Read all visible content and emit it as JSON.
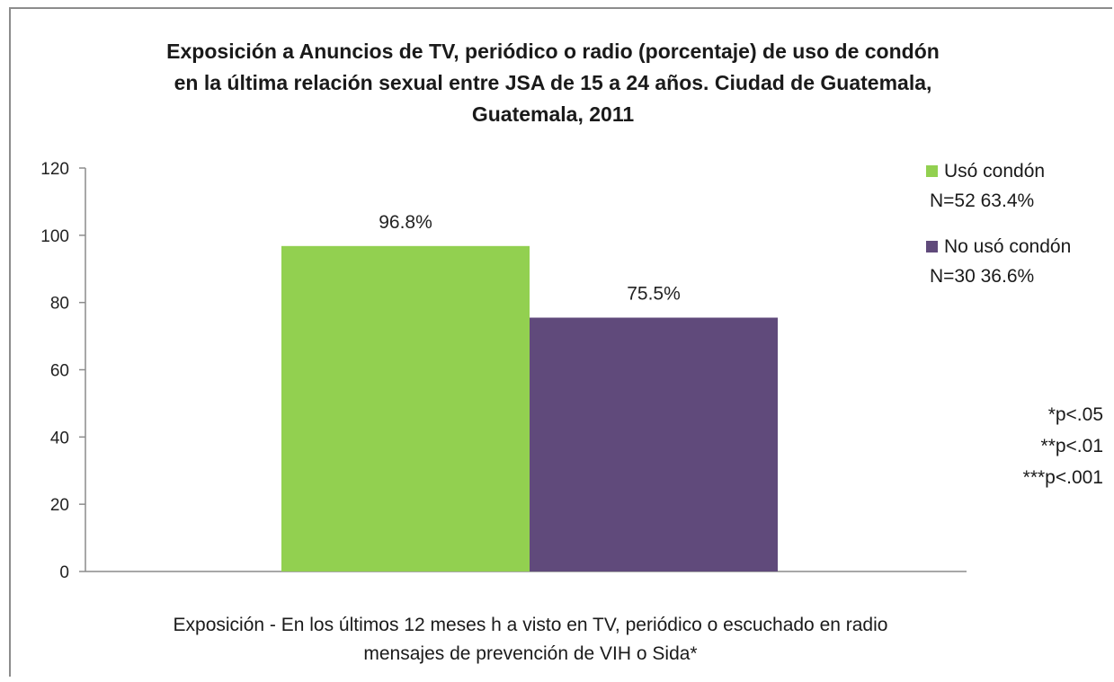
{
  "title_lines": [
    "Exposición a Anuncios de TV, periódico o radio (porcentaje) de uso de condón",
    "en la última relación sexual entre JSA de 15 a 24 años. Ciudad de Guatemala,",
    "Guatemala, 2011"
  ],
  "xlabel_lines": [
    "Exposición - En los últimos 12 meses h a visto en TV, periódico o escuchado en radio",
    "mensajes de prevención de VIH o Sida*"
  ],
  "legend": [
    {
      "label": "Usó condón",
      "sub": "N=52 63.4%",
      "color": "#92d050"
    },
    {
      "label": "No usó condón",
      "sub": "N=30 36.6%",
      "color": "#604a7b"
    }
  ],
  "notes": [
    "*p<.05",
    "**p<.01",
    "***p<.001"
  ],
  "chart_data": {
    "type": "bar",
    "categories": [
      "Exposición - En los últimos 12 meses h a visto en TV, periódico o escuchado en radio mensajes de prevención de VIH o Sida*"
    ],
    "series": [
      {
        "name": "Usó condón",
        "values": [
          96.8
        ],
        "label": "96.8%",
        "color": "#92d050"
      },
      {
        "name": "No usó condón",
        "values": [
          75.5
        ],
        "label": "75.5%",
        "color": "#604a7b"
      }
    ],
    "ylim": [
      0,
      120
    ],
    "yticks": [
      0,
      20,
      40,
      60,
      80,
      100,
      120
    ],
    "grid": false,
    "legend_position": "right"
  }
}
